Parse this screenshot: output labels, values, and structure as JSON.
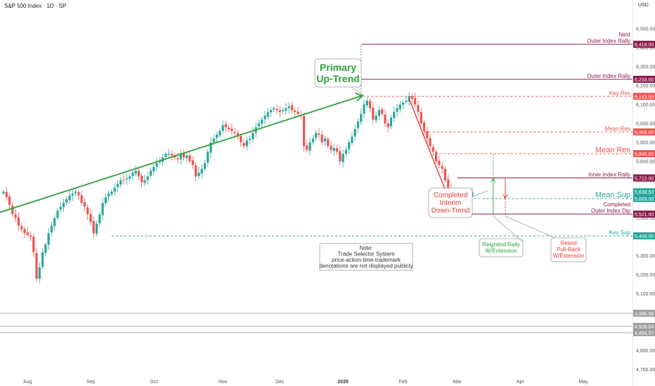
{
  "header": {
    "title": "S&P 500 Index · 1D · SP",
    "currency": "USD"
  },
  "colors": {
    "up": "#26a69a",
    "down": "#ef5350",
    "trend": "#2e9e3a",
    "rally": "#43a047",
    "dip": "#e53935",
    "purple": "#8b1a4a"
  },
  "chart_data": {
    "type": "candlestick",
    "title": "S&P 500 Index · 1D · SP",
    "ylabel": "USD",
    "ylim": [
      4650,
      6600
    ],
    "x_months": [
      {
        "label": "Aug",
        "index": 8
      },
      {
        "label": "Sep",
        "index": 29
      },
      {
        "label": "Oct",
        "index": 50
      },
      {
        "label": "Nov",
        "index": 73
      },
      {
        "label": "Dec",
        "index": 92
      },
      {
        "label": "2025",
        "index": 113
      },
      {
        "label": "Feb",
        "index": 133
      },
      {
        "label": "Mar",
        "index": 151
      },
      {
        "label": "Apr",
        "index": 172
      },
      {
        "label": "May",
        "index": 193
      }
    ],
    "y_ticks": [
      4700,
      4800,
      5100,
      5200,
      5300,
      5400,
      5500,
      5600,
      5700,
      5800,
      5900,
      6000,
      6100,
      6200,
      6300,
      6400,
      6500
    ],
    "closes": [
      5640,
      5610,
      5570,
      5520,
      5500,
      5460,
      5440,
      5420,
      5410,
      5400,
      5320,
      5180,
      5240,
      5320,
      5360,
      5420,
      5460,
      5500,
      5540,
      5560,
      5580,
      5600,
      5620,
      5630,
      5640,
      5620,
      5580,
      5560,
      5520,
      5480,
      5420,
      5470,
      5520,
      5580,
      5610,
      5630,
      5640,
      5660,
      5680,
      5700,
      5700,
      5710,
      5720,
      5740,
      5750,
      5720,
      5690,
      5700,
      5720,
      5750,
      5770,
      5790,
      5800,
      5820,
      5840,
      5840,
      5830,
      5820,
      5810,
      5840,
      5820,
      5830,
      5800,
      5780,
      5720,
      5740,
      5760,
      5790,
      5850,
      5900,
      5920,
      5940,
      5960,
      5990,
      5980,
      5970,
      5960,
      5950,
      5930,
      5900,
      5880,
      5910,
      5920,
      5950,
      5980,
      6000,
      6020,
      6040,
      6060,
      6070,
      6080,
      6070,
      6060,
      6070,
      6080,
      6090,
      6070,
      6060,
      6050,
      6040,
      5880,
      5860,
      5900,
      5920,
      5950,
      5940,
      5900,
      5920,
      5880,
      5860,
      5870,
      5850,
      5800,
      5840,
      5860,
      5900,
      5930,
      5970,
      6010,
      6050,
      6100,
      6120,
      6080,
      6020,
      6040,
      6070,
      6050,
      6000,
      5980,
      6030,
      6060,
      6080,
      6100,
      6110,
      6120,
      6144,
      6130,
      6100,
      6060,
      6000,
      5960,
      5920,
      5880,
      5850,
      5800,
      5780,
      5760,
      5700,
      5660,
      5640,
      5600,
      5580,
      5560,
      5540,
      5560,
      5610,
      5639
    ],
    "index_range": [
      0,
      200
    ],
    "last_close": 5638.93,
    "levels": [
      {
        "name": "Next Outer Index Rally",
        "label": "Next\nOuter Index Rally",
        "value": 6418.0,
        "style": "solid",
        "color": "#8b1a4a"
      },
      {
        "name": "Outer Index Rally",
        "label": "Outer Index Rally",
        "value": 6233.0,
        "style": "solid",
        "color": "#8b1a4a"
      },
      {
        "name": "Key Res",
        "label": "Key Res",
        "value": 6143.0,
        "style": "dashed",
        "color": "#ef5350"
      },
      {
        "name": "Mean Res",
        "label": "Mean Res",
        "value": 5955.0,
        "style": "dashed",
        "color": "#ef5350"
      },
      {
        "name": "Mean Res 2",
        "label": "Mean Res",
        "value": 5840.0,
        "style": "dashed",
        "color": "#ef5350"
      },
      {
        "name": "Inner Index Rally",
        "label": "Inner Index Rally",
        "value": 5712.0,
        "style": "solid",
        "color": "#8b1a4a"
      },
      {
        "name": "Mean Sup",
        "label": "Mean Sup",
        "value": 5603.0,
        "style": "dashed",
        "color": "#26a69a"
      },
      {
        "name": "Completed Outer Index Dip",
        "label": "Completed\nOuter Index Dip",
        "value": 5521.0,
        "style": "solid",
        "color": "#8b1a4a"
      },
      {
        "name": "Key Sup",
        "label": "Key Sup",
        "value": 5406.0,
        "style": "dashed",
        "color": "#26a69a"
      }
    ],
    "gray_levels": [
      4996.96,
      4928.04,
      4894.57
    ],
    "annotations": {
      "primary_uptrend": "Primary\nUp-Trend",
      "completed_downtrend": "Completed\nInterim\nDown-Trend",
      "reignited_rally": "Reignited Rally\nW/Extension",
      "retest": "Retest\nPull-Back\nW/Extension",
      "note": "Note:\nTrade Selector System\nprice-action-time-trademark\ndenotations are not displayed publicly"
    },
    "price_tags": [
      {
        "value": 6418.0,
        "text": "6,418.00",
        "color": "#8b1a4a"
      },
      {
        "value": 6233.0,
        "text": "6,233.00",
        "color": "#8b1a4a"
      },
      {
        "value": 6143.0,
        "text": "6,143.00",
        "color": "#ef5350"
      },
      {
        "value": 5955.0,
        "text": "5,955.00",
        "color": "#ef5350"
      },
      {
        "value": 5840.0,
        "text": "5,840.00",
        "color": "#ef5350"
      },
      {
        "value": 5712.0,
        "text": "5,712.00",
        "color": "#8b1a4a"
      },
      {
        "value": 5638.93,
        "text": "5,638.93",
        "color": "#26a69a"
      },
      {
        "value": 5603.0,
        "text": "5,603.00",
        "color": "#26a69a"
      },
      {
        "value": 5521.0,
        "text": "5,521.00",
        "color": "#8b1a4a"
      },
      {
        "value": 5406.0,
        "text": "5,406.00",
        "color": "#26a69a"
      },
      {
        "value": 4996.96,
        "text": "4,996.96",
        "color": "#9e9e9e"
      },
      {
        "value": 4928.04,
        "text": "4,928.04",
        "color": "#9e9e9e"
      },
      {
        "value": 4894.57,
        "text": "4,894.57",
        "color": "#9e9e9e"
      }
    ]
  }
}
